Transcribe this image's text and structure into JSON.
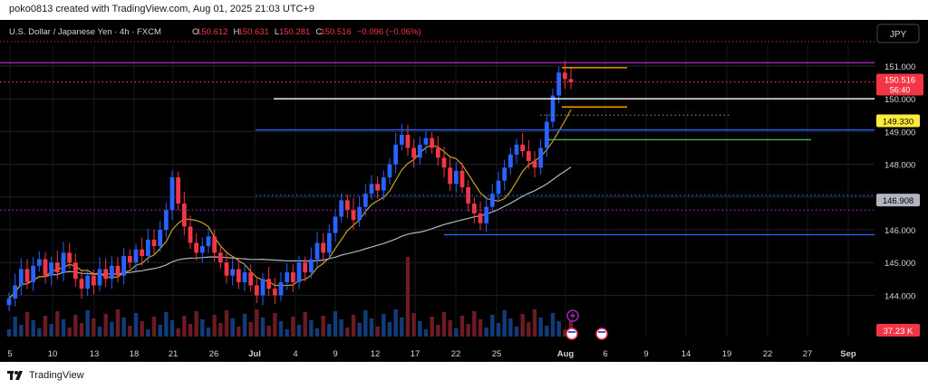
{
  "header": {
    "credit": "poko0813 created with TradingView.com, Aug 01, 2025 21:03 UTC+9"
  },
  "legend": {
    "symbol": "U.S. Dollar / Japanese Yen · 4h · FXCM",
    "open_label": "O",
    "open": "150.612",
    "high_label": "H",
    "high": "150.631",
    "low_label": "L",
    "low": "150.281",
    "close_label": "C",
    "close": "150.516",
    "change": "−0.096 (−0.06%)"
  },
  "currency_button": "JPY",
  "footer": {
    "brand": "TradingView"
  },
  "colors": {
    "up": "#2962ff",
    "down": "#f23645",
    "sma_short": "#c9a227",
    "sma_long": "#b2b5be",
    "purple": "#9c27b0",
    "blue_level": "#2962ff",
    "orange_level": "#ff9800",
    "green_level": "#4caf50",
    "last_price_bg": "#f23645",
    "level_149_bg": "#ffeb3b"
  },
  "chart_data": {
    "type": "candlestick",
    "ylim": [
      143.0,
      152.0
    ],
    "y_ticks": [
      "151.000",
      "150.000",
      "149.000",
      "148.000",
      "147.000",
      "146.000",
      "145.000",
      "144.000"
    ],
    "x_ticks": [
      "5",
      "10",
      "13",
      "18",
      "21",
      "26",
      "Jul",
      "4",
      "9",
      "12",
      "17",
      "22",
      "25",
      "Aug",
      "6",
      "9",
      "14",
      "19",
      "22",
      "27",
      "Sep"
    ],
    "price_labels": [
      {
        "name": "last-price",
        "value": "150.516",
        "countdown": "56:40"
      },
      {
        "name": "level-149",
        "value": "149.330"
      },
      {
        "name": "sma-long",
        "value": "146.908"
      },
      {
        "name": "volume",
        "value": "37.23 K"
      }
    ],
    "horizontal_levels": [
      {
        "name": "purple-top",
        "price": 151.1,
        "style": "solid",
        "color": "purple"
      },
      {
        "name": "red-dotted-last",
        "price": 150.516,
        "style": "dotted",
        "color": "red"
      },
      {
        "name": "orange-high",
        "price": 150.95,
        "style": "solid",
        "color": "orange"
      },
      {
        "name": "white-150",
        "price": 150.0,
        "style": "solid",
        "color": "white"
      },
      {
        "name": "orange-mid",
        "price": 149.75,
        "style": "solid",
        "color": "orange"
      },
      {
        "name": "green-dotted",
        "price": 149.5,
        "style": "dotted",
        "color": "green"
      },
      {
        "name": "blue-149",
        "price": 149.05,
        "style": "solid",
        "color": "blue"
      },
      {
        "name": "green-solid",
        "price": 148.75,
        "style": "solid",
        "color": "green"
      },
      {
        "name": "blue-dotted-147",
        "price": 147.05,
        "style": "dotted",
        "color": "blue"
      },
      {
        "name": "purple-dotted-146",
        "price": 146.6,
        "style": "dotted",
        "color": "purple"
      },
      {
        "name": "blue-145-9",
        "price": 145.85,
        "style": "solid",
        "color": "blue"
      }
    ],
    "close_path": [
      [
        0,
        143.9
      ],
      [
        1,
        144.3
      ],
      [
        2,
        144.8
      ],
      [
        3,
        144.4
      ],
      [
        4,
        144.9
      ],
      [
        5,
        145.1
      ],
      [
        6,
        144.6
      ],
      [
        7,
        145.0
      ],
      [
        8,
        144.7
      ],
      [
        9,
        145.3
      ],
      [
        10,
        145.0
      ],
      [
        11,
        144.5
      ],
      [
        12,
        144.2
      ],
      [
        13,
        144.6
      ],
      [
        14,
        144.3
      ],
      [
        15,
        144.8
      ],
      [
        16,
        144.5
      ],
      [
        17,
        144.9
      ],
      [
        18,
        144.6
      ],
      [
        19,
        145.2
      ],
      [
        20,
        145.0
      ],
      [
        21,
        145.4
      ],
      [
        22,
        145.2
      ],
      [
        23,
        145.7
      ],
      [
        24,
        145.5
      ],
      [
        25,
        146.0
      ],
      [
        26,
        146.6
      ],
      [
        27,
        147.6
      ],
      [
        28,
        146.8
      ],
      [
        29,
        146.1
      ],
      [
        30,
        145.6
      ],
      [
        31,
        145.3
      ],
      [
        32,
        145.5
      ],
      [
        33,
        145.8
      ],
      [
        34,
        145.3
      ],
      [
        35,
        145.0
      ],
      [
        36,
        144.6
      ],
      [
        37,
        144.8
      ],
      [
        38,
        144.4
      ],
      [
        39,
        144.7
      ],
      [
        40,
        144.3
      ],
      [
        41,
        144.0
      ],
      [
        42,
        144.5
      ],
      [
        43,
        144.2
      ],
      [
        44,
        144.0
      ],
      [
        45,
        144.4
      ],
      [
        46,
        144.7
      ],
      [
        47,
        144.4
      ],
      [
        48,
        145.0
      ],
      [
        49,
        144.7
      ],
      [
        50,
        145.1
      ],
      [
        51,
        145.6
      ],
      [
        52,
        145.3
      ],
      [
        53,
        145.9
      ],
      [
        54,
        146.4
      ],
      [
        55,
        146.9
      ],
      [
        56,
        146.6
      ],
      [
        57,
        146.3
      ],
      [
        58,
        146.7
      ],
      [
        59,
        147.1
      ],
      [
        60,
        147.4
      ],
      [
        61,
        147.2
      ],
      [
        62,
        147.6
      ],
      [
        63,
        148.0
      ],
      [
        64,
        148.6
      ],
      [
        65,
        148.9
      ],
      [
        66,
        148.5
      ],
      [
        67,
        148.2
      ],
      [
        68,
        148.6
      ],
      [
        69,
        148.8
      ],
      [
        70,
        148.5
      ],
      [
        71,
        148.2
      ],
      [
        72,
        147.9
      ],
      [
        73,
        147.4
      ],
      [
        74,
        147.8
      ],
      [
        75,
        147.3
      ],
      [
        76,
        146.8
      ],
      [
        77,
        146.5
      ],
      [
        78,
        146.2
      ],
      [
        79,
        146.7
      ],
      [
        80,
        147.1
      ],
      [
        81,
        147.5
      ],
      [
        82,
        147.9
      ],
      [
        83,
        148.3
      ],
      [
        84,
        148.6
      ],
      [
        85,
        148.4
      ],
      [
        86,
        148.1
      ],
      [
        87,
        147.9
      ],
      [
        88,
        148.5
      ],
      [
        89,
        149.3
      ],
      [
        90,
        150.1
      ],
      [
        91,
        150.8
      ],
      [
        92,
        150.6
      ],
      [
        93,
        150.5
      ]
    ],
    "volume_spike_index": 66
  }
}
